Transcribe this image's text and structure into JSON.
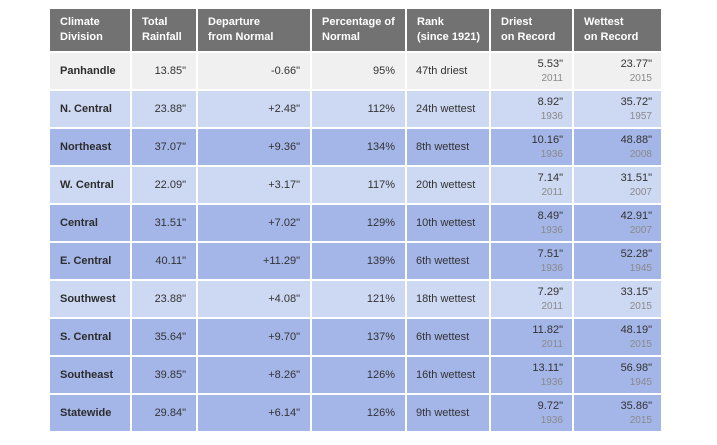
{
  "colors": {
    "header_bg": "#727272",
    "row_below_normal_gray": "#f0f0f0",
    "row_wet_light_blue": "#cdd8f2",
    "row_wetter_medium_blue": "#a4b5e8",
    "value_text": "#333333",
    "year_text": "#8a8a8a",
    "cell_border": "#ffffff"
  },
  "chart_data": {
    "type": "table",
    "columns": [
      {
        "key": "division",
        "line1": "Climate",
        "line2": "Division"
      },
      {
        "key": "total_rainfall",
        "line1": "Total",
        "line2": "Rainfall"
      },
      {
        "key": "departure",
        "line1": "Departure",
        "line2": "from Normal"
      },
      {
        "key": "percent_normal",
        "line1": "Percentage of",
        "line2": "Normal"
      },
      {
        "key": "rank",
        "line1": "Rank",
        "line2": "(since 1921)"
      },
      {
        "key": "driest",
        "line1": "Driest",
        "line2": "on Record"
      },
      {
        "key": "wettest",
        "line1": "Wettest",
        "line2": "on Record"
      }
    ],
    "rows": [
      {
        "division": "Panhandle",
        "total_rainfall": "13.85\"",
        "departure": "-0.66\"",
        "percent_normal": "95%",
        "rank": "47th driest",
        "driest_value": "5.53\"",
        "driest_year": "2011",
        "wettest_value": "23.77\"",
        "wettest_year": "2015",
        "tone": "gray"
      },
      {
        "division": "N. Central",
        "total_rainfall": "23.88\"",
        "departure": "+2.48\"",
        "percent_normal": "112%",
        "rank": "24th wettest",
        "driest_value": "8.92\"",
        "driest_year": "1936",
        "wettest_value": "35.72\"",
        "wettest_year": "1957",
        "tone": "light"
      },
      {
        "division": "Northeast",
        "total_rainfall": "37.07\"",
        "departure": "+9.36\"",
        "percent_normal": "134%",
        "rank": "8th wettest",
        "driest_value": "10.16\"",
        "driest_year": "1936",
        "wettest_value": "48.88\"",
        "wettest_year": "2008",
        "tone": "medium"
      },
      {
        "division": "W. Central",
        "total_rainfall": "22.09\"",
        "departure": "+3.17\"",
        "percent_normal": "117%",
        "rank": "20th wettest",
        "driest_value": "7.14\"",
        "driest_year": "2011",
        "wettest_value": "31.51\"",
        "wettest_year": "2007",
        "tone": "light"
      },
      {
        "division": "Central",
        "total_rainfall": "31.51\"",
        "departure": "+7.02\"",
        "percent_normal": "129%",
        "rank": "10th wettest",
        "driest_value": "8.49\"",
        "driest_year": "1936",
        "wettest_value": "42.91\"",
        "wettest_year": "2007",
        "tone": "medium"
      },
      {
        "division": "E. Central",
        "total_rainfall": "40.11\"",
        "departure": "+11.29\"",
        "percent_normal": "139%",
        "rank": "6th wettest",
        "driest_value": "7.51\"",
        "driest_year": "1936",
        "wettest_value": "52.28\"",
        "wettest_year": "1945",
        "tone": "medium"
      },
      {
        "division": "Southwest",
        "total_rainfall": "23.88\"",
        "departure": "+4.08\"",
        "percent_normal": "121%",
        "rank": "18th wettest",
        "driest_value": "7.29\"",
        "driest_year": "2011",
        "wettest_value": "33.15\"",
        "wettest_year": "2015",
        "tone": "light"
      },
      {
        "division": "S. Central",
        "total_rainfall": "35.64\"",
        "departure": "+9.70\"",
        "percent_normal": "137%",
        "rank": "6th wettest",
        "driest_value": "11.82\"",
        "driest_year": "2011",
        "wettest_value": "48.19\"",
        "wettest_year": "2015",
        "tone": "medium"
      },
      {
        "division": "Southeast",
        "total_rainfall": "39.85\"",
        "departure": "+8.26\"",
        "percent_normal": "126%",
        "rank": "16th wettest",
        "driest_value": "13.11\"",
        "driest_year": "1936",
        "wettest_value": "56.98\"",
        "wettest_year": "1945",
        "tone": "medium"
      },
      {
        "division": "Statewide",
        "total_rainfall": "29.84\"",
        "departure": "+6.14\"",
        "percent_normal": "126%",
        "rank": "9th wettest",
        "driest_value": "9.72\"",
        "driest_year": "1936",
        "wettest_value": "35.86\"",
        "wettest_year": "2015",
        "tone": "medium"
      }
    ]
  }
}
